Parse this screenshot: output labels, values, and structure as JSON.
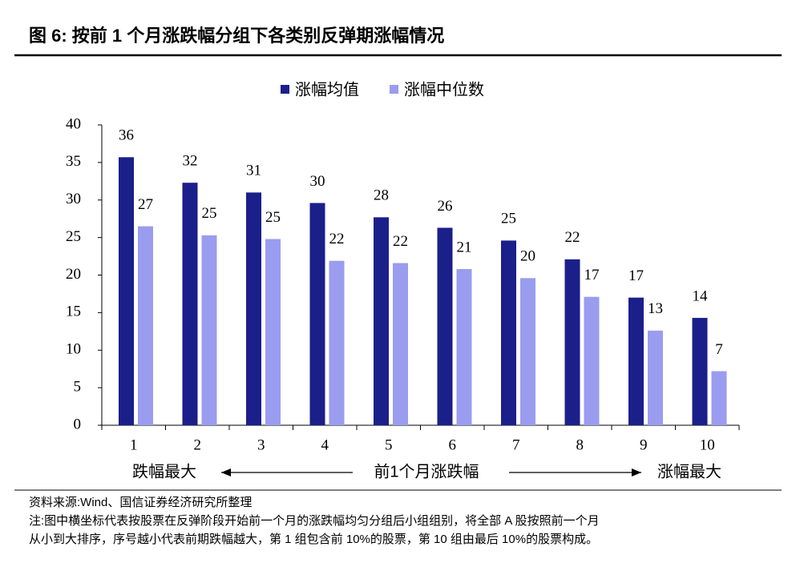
{
  "chart_data": {
    "type": "bar",
    "title": "图 6:  按前 1 个月涨跌幅分组下各类别反弹期涨幅情况",
    "categories": [
      "1",
      "2",
      "3",
      "4",
      "5",
      "6",
      "7",
      "8",
      "9",
      "10"
    ],
    "series": [
      {
        "name": "涨幅均值",
        "color": "#1b1f8a",
        "values": [
          35.7,
          32.3,
          31.0,
          29.6,
          27.7,
          26.3,
          24.6,
          22.1,
          17.0,
          14.3
        ],
        "value_labels": [
          "36",
          "32",
          "31",
          "30",
          "28",
          "26",
          "25",
          "22",
          "17",
          "14"
        ]
      },
      {
        "name": "涨幅中位数",
        "color": "#9a9cef",
        "values": [
          26.5,
          25.3,
          24.8,
          21.9,
          21.6,
          20.8,
          19.6,
          17.1,
          12.6,
          7.2
        ],
        "value_labels": [
          "27",
          "25",
          "25",
          "22",
          "22",
          "21",
          "20",
          "17",
          "13",
          "7"
        ]
      }
    ],
    "ylim": [
      0,
      40
    ],
    "yticks": [
      0,
      5,
      10,
      15,
      20,
      25,
      30,
      35,
      40
    ],
    "annotations": [
      "跌幅最大",
      "前1个月涨跌幅",
      "涨幅最大"
    ],
    "source": "资料来源:Wind、国信证券经济研究所整理",
    "notes": [
      "注:图中横坐标代表按股票在反弹阶段开始前一个月的涨跌幅均匀分组后小组组别，将全部 A 股按照前一个月",
      "从小到大排序，序号越小代表前期跌幅越大，第 1 组包含前 10%的股票，第 10 组由最后 10%的股票构成。"
    ]
  }
}
